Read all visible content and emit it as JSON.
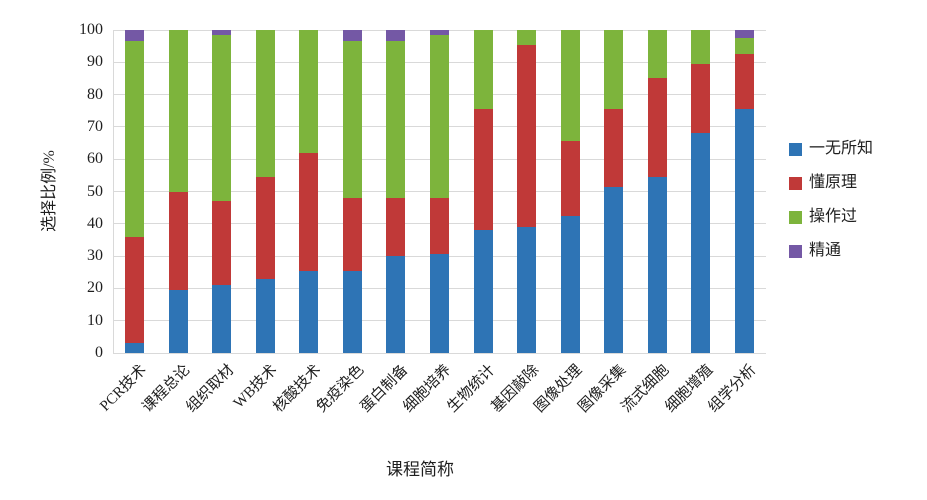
{
  "chart_data": {
    "type": "bar",
    "stacked": true,
    "title": "",
    "xlabel": "课程简称",
    "ylabel": "选择比例/%",
    "ylim": [
      0,
      100
    ],
    "yticks": [
      0,
      10,
      20,
      30,
      40,
      50,
      60,
      70,
      80,
      90,
      100
    ],
    "grid": true,
    "legend_position": "right",
    "categories": [
      "PCR技术",
      "课程总论",
      "组织取材",
      "WB技术",
      "核酸技术",
      "免疫染色",
      "蛋白制备",
      "细胞培养",
      "生物统计",
      "基因敲除",
      "图像处理",
      "图像采集",
      "流式细胞",
      "细胞增殖",
      "组学分析"
    ],
    "series": [
      {
        "name": "一无所知",
        "color": "#2e74b5",
        "values": [
          3,
          19.5,
          21,
          23,
          25.5,
          25.5,
          30,
          30.5,
          38,
          39,
          42.5,
          51.5,
          54.5,
          68,
          75.5
        ]
      },
      {
        "name": "懂原理",
        "color": "#c03938",
        "values": [
          33,
          30.5,
          26,
          31.5,
          36.5,
          22.5,
          18,
          17.5,
          37.5,
          56.5,
          23,
          24,
          30.5,
          21.5,
          17
        ]
      },
      {
        "name": "操作过",
        "color": "#7db43c",
        "values": [
          60.5,
          50,
          51.5,
          45.5,
          38,
          48.5,
          48.5,
          50.5,
          24.5,
          4.5,
          34.5,
          24.5,
          15,
          10.5,
          5
        ]
      },
      {
        "name": "精通",
        "color": "#7458a5",
        "values": [
          3.5,
          0,
          1.5,
          0,
          0,
          3.5,
          3.5,
          1.5,
          0,
          0,
          0,
          0,
          0,
          0,
          2.5
        ]
      }
    ]
  },
  "colors": {
    "gridline": "#d9d9d9",
    "axis_text": "#1f1f1f",
    "background": "#ffffff"
  }
}
